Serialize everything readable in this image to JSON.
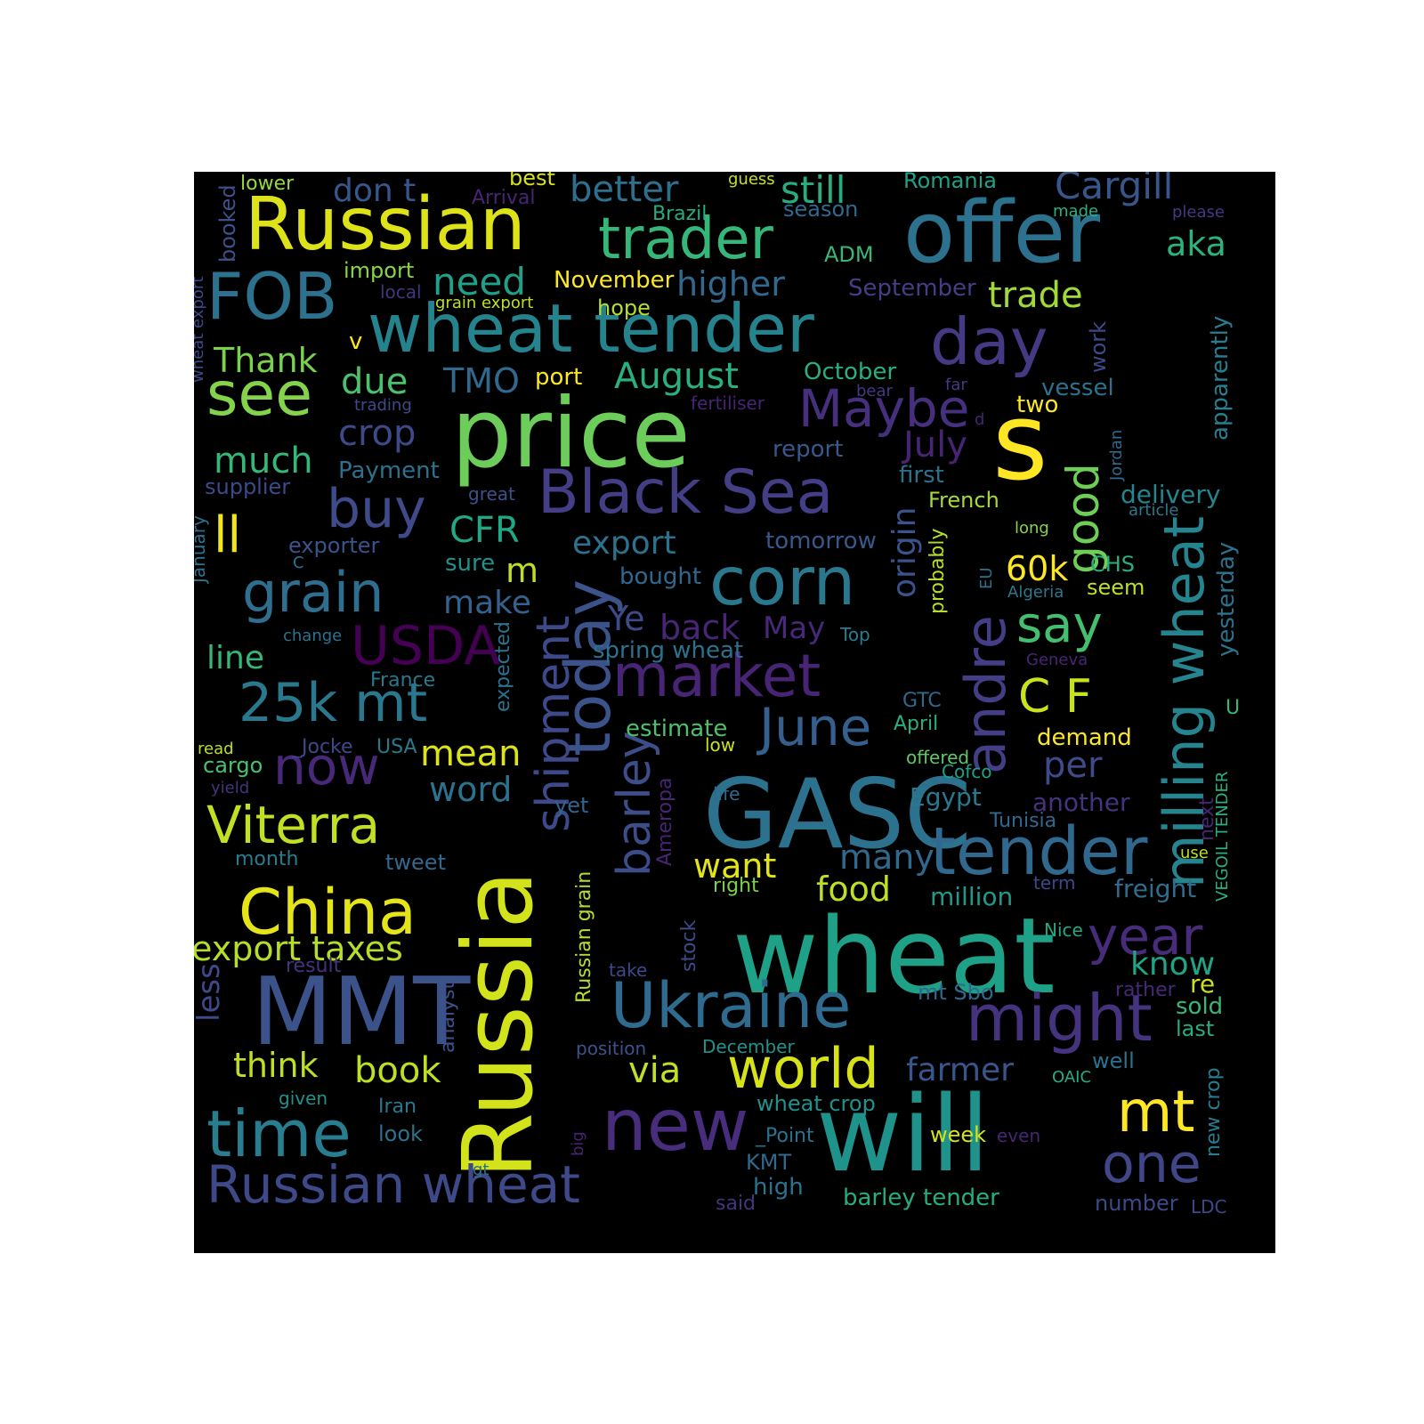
{
  "background": "#000000",
  "colormap": "viridis",
  "words": [
    {
      "text": "wheat",
      "color": "#1fa187"
    },
    {
      "text": "will",
      "color": "#20928c"
    },
    {
      "text": "GASC",
      "color": "#2c728e"
    },
    {
      "text": "price",
      "color": "#6ccd5a"
    },
    {
      "text": "Russia",
      "color": "#d2e21b"
    },
    {
      "text": "offer",
      "color": "#2c728e"
    },
    {
      "text": "Russian",
      "color": "#dde318"
    },
    {
      "text": "MMT",
      "color": "#3b528b"
    },
    {
      "text": "wheat tender",
      "color": "#25838e"
    },
    {
      "text": "s",
      "color": "#fde725"
    },
    {
      "text": "new",
      "color": "#472d7b"
    },
    {
      "text": "time",
      "color": "#287d8e"
    },
    {
      "text": "Ukraine",
      "color": "#2f6b8e"
    },
    {
      "text": "FOB",
      "color": "#2c718e"
    },
    {
      "text": "Black Sea",
      "color": "#433e85"
    },
    {
      "text": "Russian wheat",
      "color": "#3e4989"
    },
    {
      "text": "tender",
      "color": "#31688e"
    },
    {
      "text": "day",
      "color": "#443983"
    },
    {
      "text": "trader",
      "color": "#35b779"
    },
    {
      "text": "corn",
      "color": "#2a788e"
    },
    {
      "text": "market",
      "color": "#482475"
    },
    {
      "text": "might",
      "color": "#46337f"
    },
    {
      "text": "China",
      "color": "#e5e419"
    },
    {
      "text": "today",
      "color": "#3b528b"
    },
    {
      "text": "see",
      "color": "#84d44b"
    },
    {
      "text": "milling wheat",
      "color": "#25848e"
    },
    {
      "text": "andre",
      "color": "#433e85"
    },
    {
      "text": "world",
      "color": "#d8e219"
    },
    {
      "text": "grain",
      "color": "#2e6e8e"
    },
    {
      "text": "25k mt",
      "color": "#2a788e"
    },
    {
      "text": "Viterra",
      "color": "#c2df23"
    },
    {
      "text": "now",
      "color": "#482878"
    },
    {
      "text": "mt",
      "color": "#fde725"
    },
    {
      "text": "one",
      "color": "#404688"
    },
    {
      "text": "year",
      "color": "#472c7a"
    },
    {
      "text": "buy",
      "color": "#3e4a89"
    },
    {
      "text": "USDA",
      "color": "#440154"
    },
    {
      "text": "Maybe",
      "color": "#46307e"
    },
    {
      "text": "June",
      "color": "#355f8d"
    },
    {
      "text": "shipment",
      "color": "#3e4989"
    },
    {
      "text": "barley",
      "color": "#3d4d8a"
    },
    {
      "text": "good",
      "color": "#6ece58"
    },
    {
      "text": "say",
      "color": "#44bf70"
    },
    {
      "text": "C F",
      "color": "#cae11f"
    },
    {
      "text": "export taxes",
      "color": "#b5de2b"
    },
    {
      "text": "book",
      "color": "#bddf26"
    },
    {
      "text": "think",
      "color": "#bddf26"
    },
    {
      "text": "via",
      "color": "#c0df25"
    },
    {
      "text": "Cargill",
      "color": "#39568c"
    },
    {
      "text": "still",
      "color": "#27ad81"
    },
    {
      "text": "better",
      "color": "#2d708e"
    },
    {
      "text": "need",
      "color": "#1fa088"
    },
    {
      "text": "higher",
      "color": "#31688e"
    },
    {
      "text": "trade",
      "color": "#a0da39"
    },
    {
      "text": "aka",
      "color": "#2db27d"
    },
    {
      "text": "don t",
      "color": "#39568c"
    },
    {
      "text": "Thank",
      "color": "#7ad151"
    },
    {
      "text": "due",
      "color": "#4ac16d"
    },
    {
      "text": "TMO",
      "color": "#31688e"
    },
    {
      "text": "August",
      "color": "#2ab07f"
    },
    {
      "text": "crop",
      "color": "#3e4989"
    },
    {
      "text": "much",
      "color": "#35b779"
    },
    {
      "text": "ll",
      "color": "#f1e51d"
    },
    {
      "text": "CFR",
      "color": "#22a785"
    },
    {
      "text": "export",
      "color": "#2c728e"
    },
    {
      "text": "origin",
      "color": "#3b528b"
    },
    {
      "text": "60k",
      "color": "#fde725"
    },
    {
      "text": "July",
      "color": "#482475"
    },
    {
      "text": "make",
      "color": "#34618d"
    },
    {
      "text": "m",
      "color": "#bddf26"
    },
    {
      "text": "Ye",
      "color": "#3e4a89"
    },
    {
      "text": "back",
      "color": "#482576"
    },
    {
      "text": "May",
      "color": "#482979"
    },
    {
      "text": "line",
      "color": "#35b779"
    },
    {
      "text": "mean",
      "color": "#dde318"
    },
    {
      "text": "word",
      "color": "#2c728e"
    },
    {
      "text": "want",
      "color": "#e2e418"
    },
    {
      "text": "food",
      "color": "#bddf26"
    },
    {
      "text": "many",
      "color": "#31688e"
    },
    {
      "text": "per",
      "color": "#3e4a89"
    },
    {
      "text": "know",
      "color": "#20a486"
    },
    {
      "text": "farmer",
      "color": "#39568c"
    },
    {
      "text": "less",
      "color": "#3e4989"
    },
    {
      "text": "well",
      "color": "#2c728e"
    },
    {
      "text": "sold",
      "color": "#35b779"
    },
    {
      "text": "last",
      "color": "#26ad81"
    },
    {
      "text": "re",
      "color": "#c8e020"
    },
    {
      "text": "freight",
      "color": "#2f6c8e"
    },
    {
      "text": "million",
      "color": "#1f9a8a"
    },
    {
      "text": "Egypt",
      "color": "#2a788e"
    },
    {
      "text": "another",
      "color": "#46337f"
    },
    {
      "text": "estimate",
      "color": "#4ac16d"
    },
    {
      "text": "delivery",
      "color": "#25848e"
    },
    {
      "text": "apparently",
      "color": "#277f8e"
    },
    {
      "text": "yesterday",
      "color": "#2c728e"
    },
    {
      "text": "demand",
      "color": "#fde725"
    },
    {
      "text": "two",
      "color": "#fde725"
    },
    {
      "text": "vessel",
      "color": "#2c728e"
    },
    {
      "text": "October",
      "color": "#2ab07f"
    },
    {
      "text": "port",
      "color": "#fde725"
    },
    {
      "text": "report",
      "color": "#38588c"
    },
    {
      "text": "first",
      "color": "#2c728e"
    },
    {
      "text": "French",
      "color": "#a5db36"
    },
    {
      "text": "tomorrow",
      "color": "#38588c"
    },
    {
      "text": "bought",
      "color": "#31688e"
    },
    {
      "text": "CHS",
      "color": "#2ab07f"
    },
    {
      "text": "seem",
      "color": "#bddf26"
    },
    {
      "text": "spring wheat",
      "color": "#2c728e"
    },
    {
      "text": "September",
      "color": "#433e85"
    },
    {
      "text": "November",
      "color": "#fde725"
    },
    {
      "text": "hope",
      "color": "#b5de2b"
    },
    {
      "text": "ADM",
      "color": "#37b878"
    },
    {
      "text": "Brazil",
      "color": "#27ad81"
    },
    {
      "text": "season",
      "color": "#31688e"
    },
    {
      "text": "Romania",
      "color": "#1fa287"
    },
    {
      "text": "best",
      "color": "#d5e21a"
    },
    {
      "text": "lower",
      "color": "#95d840"
    },
    {
      "text": "import",
      "color": "#86d549"
    },
    {
      "text": "local",
      "color": "#46337f"
    },
    {
      "text": "grain export",
      "color": "#bddf26"
    },
    {
      "text": "Payment",
      "color": "#2c728e"
    },
    {
      "text": "supplier",
      "color": "#3e4989"
    },
    {
      "text": "exporter",
      "color": "#3b528b"
    },
    {
      "text": "sure",
      "color": "#21918c"
    },
    {
      "text": "France",
      "color": "#2a788e"
    },
    {
      "text": "_Jocke",
      "color": "#3e4989"
    },
    {
      "text": "USA",
      "color": "#2a788e"
    },
    {
      "text": "cargo",
      "color": "#4ac16d"
    },
    {
      "text": "read",
      "color": "#bddf26"
    },
    {
      "text": "yield",
      "color": "#46337f"
    },
    {
      "text": "month",
      "color": "#287d8e"
    },
    {
      "text": "tweet",
      "color": "#31688e"
    },
    {
      "text": "yet",
      "color": "#32658e"
    },
    {
      "text": "result",
      "color": "#46337f"
    },
    {
      "text": "given",
      "color": "#21918c"
    },
    {
      "text": "Iran",
      "color": "#2a788e"
    },
    {
      "text": "look",
      "color": "#2c728e"
    },
    {
      "text": "gt",
      "color": "#2c728e"
    },
    {
      "text": "said",
      "color": "#46337f"
    },
    {
      "text": "high",
      "color": "#2c728e"
    },
    {
      "text": "KMT",
      "color": "#31688e"
    },
    {
      "text": "_Point",
      "color": "#2c728e"
    },
    {
      "text": "wheat crop",
      "color": "#21918c"
    },
    {
      "text": "barley tender",
      "color": "#26ad81"
    },
    {
      "text": "number",
      "color": "#3e4989"
    },
    {
      "text": "LDC",
      "color": "#3e4989"
    },
    {
      "text": "week",
      "color": "#d5e21a"
    },
    {
      "text": "even",
      "color": "#482475"
    },
    {
      "text": "OAIC",
      "color": "#25ac82"
    },
    {
      "text": "December",
      "color": "#21918c"
    },
    {
      "text": "position",
      "color": "#3b528b"
    },
    {
      "text": "take",
      "color": "#3e4989"
    },
    {
      "text": "right",
      "color": "#7ad151"
    },
    {
      "text": "mt Sbo",
      "color": "#31688e"
    },
    {
      "text": "rather",
      "color": "#482878"
    },
    {
      "text": "Nice",
      "color": "#22a884"
    },
    {
      "text": "term",
      "color": "#3e4989"
    },
    {
      "text": "use",
      "color": "#bddf26"
    },
    {
      "text": "Tunisia",
      "color": "#31688e"
    },
    {
      "text": "Cofco",
      "color": "#1fa188"
    },
    {
      "text": "offered",
      "color": "#5ec962"
    },
    {
      "text": "April",
      "color": "#2ab07f"
    },
    {
      "text": "GTC",
      "color": "#31688e"
    },
    {
      "text": "low",
      "color": "#cae11f"
    },
    {
      "text": "life",
      "color": "#31688e"
    },
    {
      "text": "Geneva",
      "color": "#482475"
    },
    {
      "text": "Top",
      "color": "#287d8e"
    },
    {
      "text": "Algeria",
      "color": "#2a788e"
    },
    {
      "text": "long",
      "color": "#86d549"
    },
    {
      "text": "article",
      "color": "#2a788e"
    },
    {
      "text": "great",
      "color": "#3b528b"
    },
    {
      "text": "change",
      "color": "#2c728e"
    },
    {
      "text": "C",
      "color": "#2c728e"
    },
    {
      "text": "v",
      "color": "#fde725"
    },
    {
      "text": "bear",
      "color": "#443983"
    },
    {
      "text": "far",
      "color": "#443983"
    },
    {
      "text": "fertiliser",
      "color": "#482475"
    },
    {
      "text": "trading",
      "color": "#3e4989"
    },
    {
      "text": "d",
      "color": "#482475"
    },
    {
      "text": "guess",
      "color": "#c8e020"
    },
    {
      "text": "made",
      "color": "#2ab07f"
    },
    {
      "text": "please",
      "color": "#443983"
    },
    {
      "text": "Arrival",
      "color": "#482475"
    },
    {
      "text": "U",
      "color": "#35b779"
    },
    {
      "text": "booked",
      "color": "#3b528b"
    },
    {
      "text": "wheat export",
      "color": "#3e4989"
    },
    {
      "text": "January",
      "color": "#2c728e"
    },
    {
      "text": "expected",
      "color": "#2c728e"
    },
    {
      "text": "analyst",
      "color": "#3b528b"
    },
    {
      "text": "stock",
      "color": "#3e4a89"
    },
    {
      "text": "Russian grain",
      "color": "#b5de2b"
    },
    {
      "text": "Ameropa",
      "color": "#482475"
    },
    {
      "text": "big",
      "color": "#482475"
    },
    {
      "text": "probably",
      "color": "#b5de2b"
    },
    {
      "text": "EU",
      "color": "#2c728e"
    },
    {
      "text": "Jordan",
      "color": "#31688e"
    },
    {
      "text": "work",
      "color": "#3e4989"
    },
    {
      "text": "next",
      "color": "#482475"
    },
    {
      "text": "VEGOIL TENDER",
      "color": "#2ab07f"
    },
    {
      "text": "new crop",
      "color": "#287d8e"
    }
  ]
}
